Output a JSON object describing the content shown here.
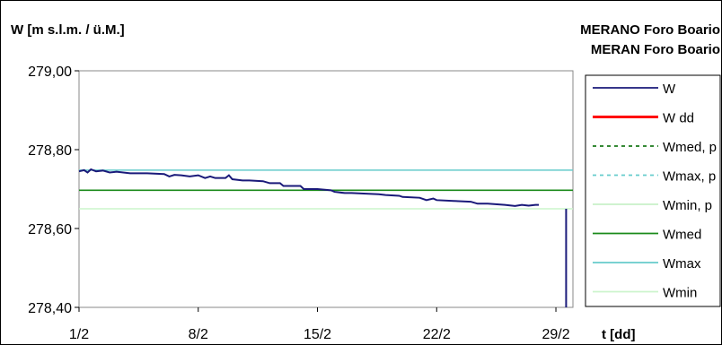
{
  "chart_data": {
    "type": "line",
    "y_axis_title": "W [m s.l.m. / ü.M.]",
    "x_axis_title": "t [dd]",
    "station_line1": "MERANO Foro Boario",
    "station_line2": "MERAN Foro Boario",
    "ylim": [
      278.4,
      279.0
    ],
    "y_ticks": [
      "278,40",
      "278,60",
      "278,80",
      "279,00"
    ],
    "y_tick_values": [
      278.4,
      278.6,
      278.8,
      279.0
    ],
    "xlim": [
      1,
      30
    ],
    "x_ticks": [
      "1/2",
      "8/2",
      "15/2",
      "22/2",
      "29/2"
    ],
    "x_tick_values": [
      1,
      8,
      15,
      22,
      29
    ],
    "grid": false,
    "legend_position": "right",
    "legend": [
      {
        "label": "W",
        "color": "#1a1a7a",
        "style": "solid"
      },
      {
        "label": "W dd",
        "color": "#ff0000",
        "style": "solid-thick"
      },
      {
        "label": "Wmed, p",
        "color": "#1a7a1a",
        "style": "dotted"
      },
      {
        "label": "Wmax, p",
        "color": "#66cccc",
        "style": "dotted"
      },
      {
        "label": "Wmin, p",
        "color": "#c8f0c8",
        "style": "solid"
      },
      {
        "label": "Wmed",
        "color": "#1a8a1a",
        "style": "solid"
      },
      {
        "label": "Wmax",
        "color": "#66cccc",
        "style": "solid"
      },
      {
        "label": "Wmin",
        "color": "#ccf5cc",
        "style": "solid"
      }
    ],
    "series": [
      {
        "name": "W",
        "color": "#1a1a7a",
        "points": [
          [
            1.0,
            278.745
          ],
          [
            1.3,
            278.748
          ],
          [
            1.5,
            278.742
          ],
          [
            1.7,
            278.75
          ],
          [
            2.0,
            278.745
          ],
          [
            2.4,
            278.747
          ],
          [
            2.8,
            278.742
          ],
          [
            3.2,
            278.744
          ],
          [
            4.0,
            278.74
          ],
          [
            5.0,
            278.74
          ],
          [
            6.0,
            278.738
          ],
          [
            6.3,
            278.732
          ],
          [
            6.6,
            278.736
          ],
          [
            7.0,
            278.735
          ],
          [
            7.5,
            278.732
          ],
          [
            8.0,
            278.735
          ],
          [
            8.4,
            278.728
          ],
          [
            8.7,
            278.732
          ],
          [
            9.0,
            278.728
          ],
          [
            9.6,
            278.728
          ],
          [
            9.8,
            278.735
          ],
          [
            10.0,
            278.725
          ],
          [
            10.6,
            278.722
          ],
          [
            11.0,
            278.722
          ],
          [
            11.8,
            278.72
          ],
          [
            12.2,
            278.715
          ],
          [
            12.8,
            278.715
          ],
          [
            13.0,
            278.708
          ],
          [
            13.6,
            278.708
          ],
          [
            14.0,
            278.708
          ],
          [
            14.2,
            278.7
          ],
          [
            15.0,
            278.7
          ],
          [
            15.8,
            278.697
          ],
          [
            16.0,
            278.693
          ],
          [
            16.6,
            278.69
          ],
          [
            17.0,
            278.69
          ],
          [
            18.0,
            278.688
          ],
          [
            18.6,
            278.687
          ],
          [
            19.0,
            278.685
          ],
          [
            19.8,
            278.683
          ],
          [
            20.0,
            278.68
          ],
          [
            21.0,
            278.678
          ],
          [
            21.4,
            278.672
          ],
          [
            21.8,
            278.676
          ],
          [
            22.0,
            278.672
          ],
          [
            23.0,
            278.67
          ],
          [
            24.0,
            278.668
          ],
          [
            24.4,
            278.663
          ],
          [
            25.0,
            278.663
          ],
          [
            26.0,
            278.66
          ],
          [
            26.6,
            278.657
          ],
          [
            27.0,
            278.66
          ],
          [
            27.4,
            278.658
          ],
          [
            27.8,
            278.66
          ],
          [
            28.0,
            278.66
          ]
        ]
      },
      {
        "name": "Wmed",
        "color": "#1a8a1a",
        "points": [
          [
            1,
            278.697
          ],
          [
            30,
            278.697
          ]
        ]
      },
      {
        "name": "Wmax",
        "color": "#66cccc",
        "points": [
          [
            1,
            278.748
          ],
          [
            30,
            278.748
          ]
        ]
      },
      {
        "name": "Wmin",
        "color": "#ccf5cc",
        "points": [
          [
            1,
            278.65
          ],
          [
            30,
            278.65
          ]
        ]
      }
    ],
    "drop_line": {
      "color": "#1a1a7a",
      "x": 29.6,
      "y_from": 278.65,
      "y_to": 278.4
    }
  }
}
